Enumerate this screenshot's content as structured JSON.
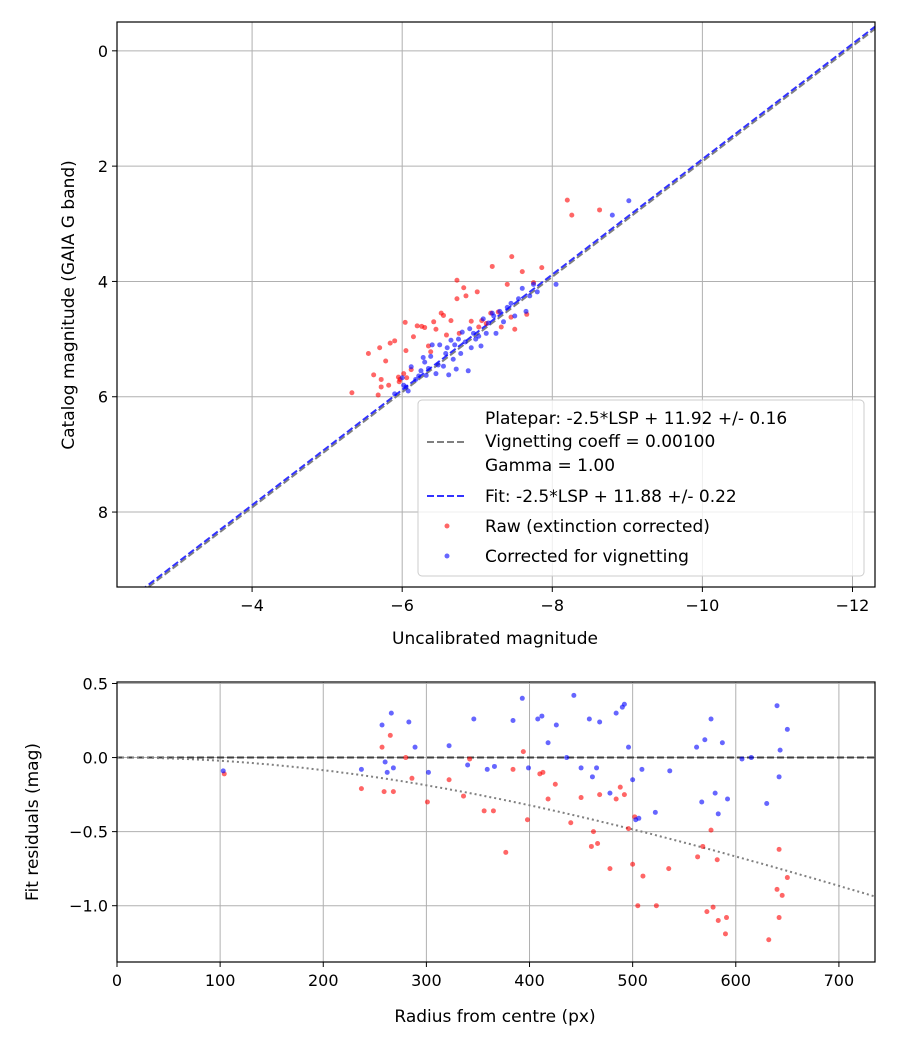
{
  "figure": {
    "background": "#ffffff"
  },
  "chart_data": [
    {
      "type": "scatter",
      "xlabel": "Uncalibrated magnitude",
      "ylabel": "Catalog magnitude (GAIA G band)",
      "xlim": [
        -2.2,
        -12.3
      ],
      "ylim": [
        9.3,
        -0.5
      ],
      "x_inverted": true,
      "y_inverted": true,
      "grid": true,
      "xticks": [
        -4,
        -6,
        -8,
        -10,
        -12
      ],
      "xtick_labels": [
        "−4",
        "−6",
        "−8",
        "−10",
        "−12"
      ],
      "yticks": [
        0,
        2,
        4,
        6,
        8
      ],
      "ytick_labels": [
        "0",
        "2",
        "4",
        "6",
        "8"
      ],
      "legend_position": "lower-right",
      "lines": [
        {
          "name": "Platepar: -2.5*LSP + 11.92 +/- 0.16",
          "name_line2": "Vignetting coeff = 0.00100",
          "name_line3": "Gamma = 1.00",
          "color": "#808080",
          "style": "dashed",
          "intercept": 11.92
        },
        {
          "name": "Fit: -2.5*LSP + 11.88 +/- 0.22",
          "color": "#3333ff",
          "style": "dashed",
          "intercept": 11.88
        }
      ],
      "series": [
        {
          "name": "Raw (extinction corrected)",
          "color": "#ff0000",
          "points": [
            [
              -5.33,
              5.93
            ],
            [
              -5.55,
              5.25
            ],
            [
              -5.62,
              5.62
            ],
            [
              -5.7,
              5.15
            ],
            [
              -5.68,
              5.97
            ],
            [
              -5.78,
              5.38
            ],
            [
              -5.72,
              5.7
            ],
            [
              -5.72,
              5.83
            ],
            [
              -5.82,
              5.8
            ],
            [
              -5.84,
              5.07
            ],
            [
              -5.9,
              5.03
            ],
            [
              -5.95,
              5.66
            ],
            [
              -5.96,
              5.74
            ],
            [
              -5.97,
              5.7
            ],
            [
              -6.02,
              5.6
            ],
            [
              -6.04,
              4.71
            ],
            [
              -6.05,
              5.2
            ],
            [
              -6.06,
              5.67
            ],
            [
              -6.12,
              5.53
            ],
            [
              -6.15,
              4.96
            ],
            [
              -6.2,
              4.77
            ],
            [
              -6.26,
              4.78
            ],
            [
              -6.3,
              4.8
            ],
            [
              -6.35,
              5.12
            ],
            [
              -6.38,
              5.22
            ],
            [
              -6.42,
              4.7
            ],
            [
              -6.45,
              4.83
            ],
            [
              -6.52,
              4.55
            ],
            [
              -6.55,
              4.59
            ],
            [
              -6.59,
              4.93
            ],
            [
              -6.65,
              4.68
            ],
            [
              -6.73,
              3.98
            ],
            [
              -6.73,
              4.3
            ],
            [
              -6.76,
              4.9
            ],
            [
              -6.82,
              4.11
            ],
            [
              -6.85,
              4.25
            ],
            [
              -6.92,
              4.69
            ],
            [
              -7.0,
              4.18
            ],
            [
              -7.02,
              4.79
            ],
            [
              -7.06,
              4.68
            ],
            [
              -7.12,
              4.73
            ],
            [
              -7.2,
              3.74
            ],
            [
              -7.18,
              4.55
            ],
            [
              -7.28,
              4.53
            ],
            [
              -7.32,
              4.79
            ],
            [
              -7.4,
              4.05
            ],
            [
              -7.45,
              4.62
            ],
            [
              -7.46,
              3.57
            ],
            [
              -7.5,
              4.83
            ],
            [
              -7.6,
              3.83
            ],
            [
              -7.66,
              4.57
            ],
            [
              -7.75,
              4.02
            ],
            [
              -7.86,
              3.76
            ],
            [
              -8.2,
              2.59
            ],
            [
              -8.26,
              2.85
            ],
            [
              -8.63,
              2.76
            ]
          ]
        },
        {
          "name": "Corrected for vignetting",
          "color": "#0000ff",
          "points": [
            [
              -5.9,
              5.95
            ],
            [
              -6.0,
              5.67
            ],
            [
              -6.02,
              5.8
            ],
            [
              -6.05,
              5.83
            ],
            [
              -6.08,
              5.9
            ],
            [
              -6.12,
              5.48
            ],
            [
              -6.18,
              5.7
            ],
            [
              -6.22,
              5.64
            ],
            [
              -6.25,
              5.55
            ],
            [
              -6.28,
              5.32
            ],
            [
              -6.3,
              5.4
            ],
            [
              -6.32,
              5.63
            ],
            [
              -6.35,
              5.51
            ],
            [
              -6.38,
              5.3
            ],
            [
              -6.4,
              5.1
            ],
            [
              -6.45,
              5.6
            ],
            [
              -6.48,
              5.45
            ],
            [
              -6.5,
              5.1
            ],
            [
              -6.55,
              5.47
            ],
            [
              -6.58,
              5.25
            ],
            [
              -6.6,
              5.15
            ],
            [
              -6.62,
              5.62
            ],
            [
              -6.65,
              5.02
            ],
            [
              -6.68,
              5.35
            ],
            [
              -6.7,
              5.1
            ],
            [
              -6.72,
              5.52
            ],
            [
              -6.75,
              5.0
            ],
            [
              -6.78,
              5.25
            ],
            [
              -6.8,
              4.88
            ],
            [
              -6.84,
              5.05
            ],
            [
              -6.88,
              5.55
            ],
            [
              -6.9,
              4.82
            ],
            [
              -6.92,
              5.15
            ],
            [
              -6.95,
              4.9
            ],
            [
              -6.98,
              5.0
            ],
            [
              -7.02,
              4.95
            ],
            [
              -7.05,
              5.12
            ],
            [
              -7.08,
              4.65
            ],
            [
              -7.12,
              4.9
            ],
            [
              -7.15,
              4.72
            ],
            [
              -7.2,
              4.55
            ],
            [
              -7.22,
              4.6
            ],
            [
              -7.25,
              4.9
            ],
            [
              -7.3,
              4.52
            ],
            [
              -7.35,
              4.7
            ],
            [
              -7.4,
              4.45
            ],
            [
              -7.45,
              4.38
            ],
            [
              -7.5,
              4.6
            ],
            [
              -7.55,
              4.3
            ],
            [
              -7.6,
              4.12
            ],
            [
              -7.65,
              4.52
            ],
            [
              -7.7,
              4.25
            ],
            [
              -7.75,
              4.05
            ],
            [
              -7.8,
              4.18
            ],
            [
              -8.05,
              4.05
            ],
            [
              -8.8,
              2.85
            ],
            [
              -9.02,
              2.6
            ]
          ]
        }
      ]
    },
    {
      "type": "scatter",
      "xlabel": "Radius from centre (px)",
      "ylabel": "Fit residuals (mag)",
      "xlim": [
        0,
        735
      ],
      "ylim": [
        -1.38,
        0.51
      ],
      "grid": true,
      "xticks": [
        0,
        100,
        200,
        300,
        400,
        500,
        600,
        700
      ],
      "xtick_labels": [
        "0",
        "100",
        "200",
        "300",
        "400",
        "500",
        "600",
        "700"
      ],
      "yticks": [
        0.5,
        0.0,
        -0.5,
        -1.0
      ],
      "ytick_labels": [
        "0.5",
        "0.0",
        "−0.5",
        "−1.0"
      ],
      "reference_line": {
        "y": 0.0,
        "color": "#404040",
        "style": "dashed"
      },
      "vignetting_curve": {
        "coeff": 0.001,
        "color": "#808080",
        "style": "dotted"
      },
      "series": [
        {
          "name": "Raw (extinction corrected)",
          "color": "#ff0000",
          "points": [
            [
              104,
              -0.11
            ],
            [
              237,
              -0.21
            ],
            [
              257,
              0.07
            ],
            [
              259,
              -0.23
            ],
            [
              265,
              0.15
            ],
            [
              268,
              -0.23
            ],
            [
              280,
              0.0
            ],
            [
              286,
              -0.14
            ],
            [
              301,
              -0.3
            ],
            [
              322,
              -0.15
            ],
            [
              336,
              -0.26
            ],
            [
              342,
              -0.01
            ],
            [
              356,
              -0.36
            ],
            [
              365,
              -0.36
            ],
            [
              377,
              -0.64
            ],
            [
              384,
              -0.08
            ],
            [
              394,
              0.04
            ],
            [
              398,
              -0.42
            ],
            [
              410,
              -0.11
            ],
            [
              413,
              -0.1
            ],
            [
              418,
              -0.28
            ],
            [
              425,
              -0.18
            ],
            [
              440,
              -0.44
            ],
            [
              450,
              -0.27
            ],
            [
              460,
              -0.6
            ],
            [
              462,
              -0.5
            ],
            [
              466,
              -0.58
            ],
            [
              468,
              -0.25
            ],
            [
              478,
              -0.75
            ],
            [
              484,
              -0.28
            ],
            [
              488,
              -0.2
            ],
            [
              492,
              -0.25
            ],
            [
              496,
              -0.48
            ],
            [
              500,
              -0.72
            ],
            [
              502,
              -0.4
            ],
            [
              505,
              -1.0
            ],
            [
              510,
              -0.8
            ],
            [
              523,
              -1.0
            ],
            [
              535,
              -0.75
            ],
            [
              563,
              -0.67
            ],
            [
              568,
              -0.6
            ],
            [
              572,
              -1.04
            ],
            [
              576,
              -0.49
            ],
            [
              578,
              -1.01
            ],
            [
              582,
              -0.69
            ],
            [
              583,
              -1.1
            ],
            [
              590,
              -1.19
            ],
            [
              591,
              -1.08
            ],
            [
              632,
              -1.23
            ],
            [
              640,
              -0.89
            ],
            [
              642,
              -0.62
            ],
            [
              642,
              -1.08
            ],
            [
              645,
              -0.93
            ],
            [
              650,
              -0.81
            ]
          ]
        },
        {
          "name": "Corrected for vignetting",
          "color": "#0000ff",
          "points": [
            [
              103,
              -0.09
            ],
            [
              237,
              -0.08
            ],
            [
              257,
              0.22
            ],
            [
              260,
              -0.03
            ],
            [
              262,
              -0.1
            ],
            [
              266,
              0.3
            ],
            [
              268,
              -0.07
            ],
            [
              283,
              0.24
            ],
            [
              289,
              0.07
            ],
            [
              302,
              -0.1
            ],
            [
              322,
              0.08
            ],
            [
              340,
              -0.05
            ],
            [
              346,
              0.26
            ],
            [
              359,
              -0.08
            ],
            [
              366,
              -0.06
            ],
            [
              384,
              0.25
            ],
            [
              393,
              0.4
            ],
            [
              399,
              -0.07
            ],
            [
              408,
              0.26
            ],
            [
              412,
              0.28
            ],
            [
              418,
              0.1
            ],
            [
              426,
              0.22
            ],
            [
              436,
              0.0
            ],
            [
              443,
              0.42
            ],
            [
              450,
              -0.07
            ],
            [
              458,
              0.26
            ],
            [
              461,
              -0.13
            ],
            [
              465,
              -0.07
            ],
            [
              468,
              0.24
            ],
            [
              478,
              -0.24
            ],
            [
              484,
              0.3
            ],
            [
              490,
              0.34
            ],
            [
              492,
              0.36
            ],
            [
              496,
              0.07
            ],
            [
              500,
              -0.15
            ],
            [
              503,
              -0.42
            ],
            [
              506,
              -0.41
            ],
            [
              509,
              -0.08
            ],
            [
              522,
              -0.37
            ],
            [
              536,
              -0.09
            ],
            [
              562,
              0.07
            ],
            [
              567,
              -0.3
            ],
            [
              570,
              0.12
            ],
            [
              576,
              0.26
            ],
            [
              580,
              -0.24
            ],
            [
              583,
              -0.38
            ],
            [
              587,
              0.1
            ],
            [
              592,
              -0.28
            ],
            [
              606,
              -0.01
            ],
            [
              615,
              0.0
            ],
            [
              630,
              -0.31
            ],
            [
              640,
              0.35
            ],
            [
              642,
              -0.13
            ],
            [
              643,
              0.05
            ],
            [
              650,
              0.19
            ]
          ]
        }
      ]
    }
  ]
}
